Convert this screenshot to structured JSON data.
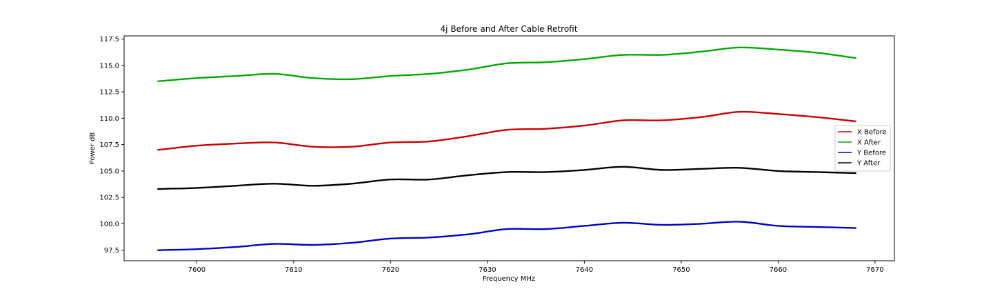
{
  "chart_data": {
    "type": "line",
    "title": "4j Before and After Cable Retrofit",
    "xlabel": "Frequency MHz",
    "ylabel": "Power dB",
    "xlim": [
      7592.5,
      7672.0
    ],
    "ylim": [
      96.5,
      117.8
    ],
    "xticks": [
      7600,
      7610,
      7620,
      7630,
      7640,
      7650,
      7660,
      7670
    ],
    "yticks": [
      97.5,
      100.0,
      102.5,
      105.0,
      107.5,
      110.0,
      112.5,
      115.0,
      117.5
    ],
    "grid": false,
    "legend_position": "center-right",
    "x": [
      7596,
      7600,
      7604,
      7608,
      7612,
      7616,
      7620,
      7624,
      7628,
      7632,
      7636,
      7640,
      7644,
      7648,
      7652,
      7656,
      7660,
      7664,
      7668
    ],
    "series": [
      {
        "name": "X Before",
        "color": "#cc0000",
        "values": [
          107.0,
          107.4,
          107.6,
          107.7,
          107.3,
          107.3,
          107.7,
          107.8,
          108.3,
          108.9,
          109.0,
          109.3,
          109.8,
          109.8,
          110.1,
          110.6,
          110.4,
          110.1,
          109.7
        ]
      },
      {
        "name": "X After",
        "color": "#00aa00",
        "values": [
          113.5,
          113.8,
          114.0,
          114.2,
          113.8,
          113.7,
          114.0,
          114.2,
          114.6,
          115.2,
          115.3,
          115.6,
          116.0,
          116.0,
          116.3,
          116.7,
          116.5,
          116.2,
          115.7
        ]
      },
      {
        "name": "Y Before",
        "color": "#0000cc",
        "values": [
          97.5,
          97.6,
          97.8,
          98.1,
          98.0,
          98.2,
          98.6,
          98.7,
          99.0,
          99.5,
          99.5,
          99.8,
          100.1,
          99.9,
          100.0,
          100.2,
          99.8,
          99.7,
          99.6
        ]
      },
      {
        "name": "Y After",
        "color": "#000000",
        "values": [
          103.3,
          103.4,
          103.6,
          103.8,
          103.6,
          103.8,
          104.2,
          104.2,
          104.6,
          104.9,
          104.9,
          105.1,
          105.4,
          105.1,
          105.2,
          105.3,
          105.0,
          104.9,
          104.8
        ]
      }
    ]
  }
}
